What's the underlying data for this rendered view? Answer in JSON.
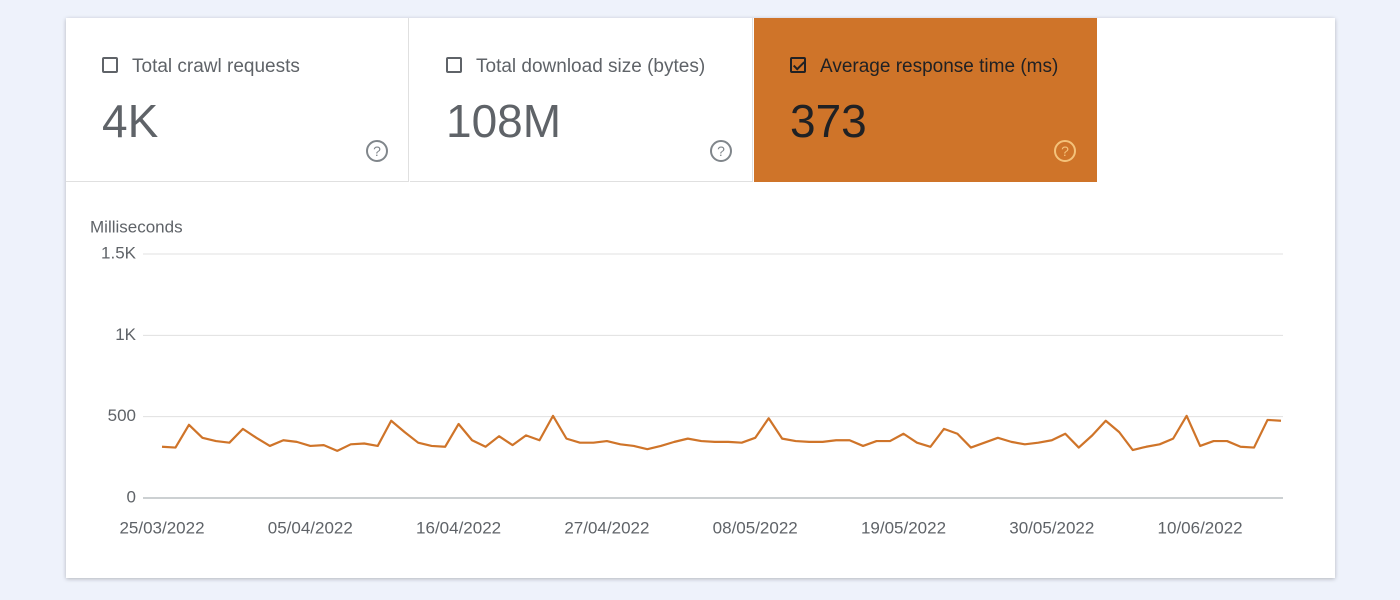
{
  "cards": [
    {
      "label": "Total crawl requests",
      "value": "4K",
      "selected": false
    },
    {
      "label": "Total download size (bytes)",
      "value": "108M",
      "selected": false
    },
    {
      "label": "Average response time (ms)",
      "value": "373",
      "selected": true
    }
  ],
  "chart_data": {
    "type": "line",
    "y_label": "Milliseconds",
    "categories": [
      "25/03/2022",
      null,
      null,
      null,
      null,
      null,
      null,
      null,
      null,
      null,
      null,
      "05/04/2022",
      null,
      null,
      null,
      null,
      null,
      null,
      null,
      null,
      null,
      null,
      "16/04/2022",
      null,
      null,
      null,
      null,
      null,
      null,
      null,
      null,
      null,
      null,
      "27/04/2022",
      null,
      null,
      null,
      null,
      null,
      null,
      null,
      null,
      null,
      null,
      "08/05/2022",
      null,
      null,
      null,
      null,
      null,
      null,
      null,
      null,
      null,
      null,
      "19/05/2022",
      null,
      null,
      null,
      null,
      null,
      null,
      null,
      null,
      null,
      null,
      "30/05/2022",
      null,
      null,
      null,
      null,
      null,
      null,
      null,
      null,
      null,
      null,
      "10/06/2022",
      null,
      null,
      null,
      null,
      null,
      null
    ],
    "series": [
      {
        "name": "Average response time",
        "color": "#cf7429",
        "values": [
          315,
          310,
          450,
          370,
          350,
          340,
          425,
          370,
          320,
          355,
          345,
          320,
          325,
          290,
          330,
          335,
          320,
          475,
          405,
          340,
          320,
          315,
          455,
          355,
          315,
          380,
          325,
          385,
          355,
          505,
          365,
          340,
          340,
          350,
          330,
          320,
          300,
          320,
          345,
          365,
          350,
          345,
          345,
          340,
          370,
          490,
          365,
          350,
          345,
          345,
          355,
          355,
          320,
          350,
          350,
          395,
          340,
          315,
          425,
          395,
          310,
          340,
          370,
          345,
          330,
          340,
          355,
          395,
          310,
          385,
          475,
          405,
          295,
          315,
          330,
          365,
          505,
          320,
          350,
          350,
          315,
          310,
          480,
          475
        ]
      }
    ],
    "ylim": [
      0,
      1500
    ],
    "yticks": [
      0,
      500,
      {
        "value": 1000,
        "label": "1K"
      },
      {
        "value": 1500,
        "label": "1.5K"
      }
    ],
    "grid": true
  }
}
